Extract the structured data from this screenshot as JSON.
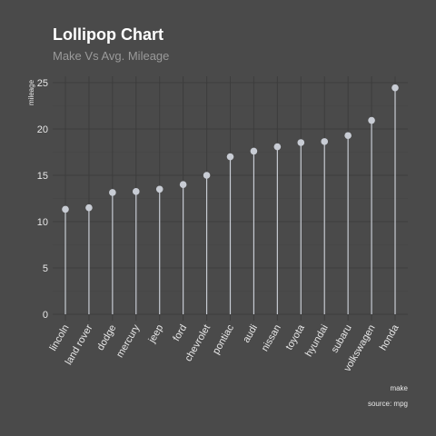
{
  "chart_data": {
    "type": "lollipop",
    "title": "Lollipop Chart",
    "subtitle": "Make Vs Avg. Mileage",
    "xlabel": "make",
    "ylabel": "mileage",
    "caption": "source: mpg",
    "categories": [
      "lincoln",
      "land rover",
      "dodge",
      "mercury",
      "jeep",
      "ford",
      "chevrolet",
      "pontiac",
      "audi",
      "nissan",
      "toyota",
      "hyundai",
      "subaru",
      "volkswagen",
      "honda"
    ],
    "values": [
      11.33,
      11.5,
      13.14,
      13.25,
      13.5,
      14.0,
      15.0,
      17.0,
      17.61,
      18.08,
      18.53,
      18.64,
      19.29,
      20.93,
      24.44
    ],
    "ylim": [
      0,
      25
    ],
    "yticks": [
      0,
      5,
      10,
      15,
      20,
      25
    ],
    "grid": true,
    "colors": {
      "background": "#4a4a4a",
      "marker": "#c8ccd4"
    }
  }
}
